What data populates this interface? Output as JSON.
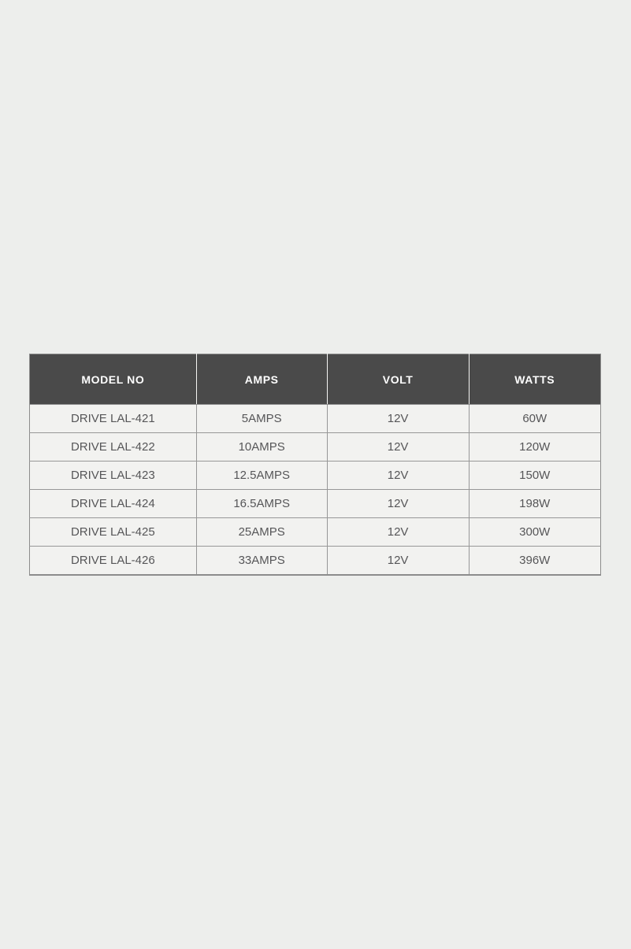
{
  "page": {
    "background": "#edeeec"
  },
  "table": {
    "columns": [
      "MODEL NO",
      "AMPS",
      "VOLT",
      "WATTS"
    ],
    "rows": [
      [
        "DRIVE LAL-421",
        "5AMPS",
        "12V",
        "60W"
      ],
      [
        "DRIVE LAL-422",
        "10AMPS",
        "12V",
        "120W"
      ],
      [
        "DRIVE LAL-423",
        "12.5AMPS",
        "12V",
        "150W"
      ],
      [
        "DRIVE LAL-424",
        "16.5AMPS",
        "12V",
        "198W"
      ],
      [
        "DRIVE LAL-425",
        "25AMPS",
        "12V",
        "300W"
      ],
      [
        "DRIVE LAL-426",
        "33AMPS",
        "12V",
        "396W"
      ]
    ],
    "colors": {
      "header_bg": "#4a4a4a",
      "header_text": "#ffffff",
      "cell_bg": "#f2f2f0",
      "cell_text": "#565658",
      "border_outer": "#8c8c8c",
      "border_inner": "#979797"
    }
  },
  "chart_data": {
    "type": "table",
    "title": "",
    "columns": [
      "MODEL NO",
      "AMPS",
      "VOLT",
      "WATTS"
    ],
    "rows": [
      {
        "model_no": "DRIVE LAL-421",
        "amps": "5AMPS",
        "volt": "12V",
        "watts": "60W"
      },
      {
        "model_no": "DRIVE LAL-422",
        "amps": "10AMPS",
        "volt": "12V",
        "watts": "120W"
      },
      {
        "model_no": "DRIVE LAL-423",
        "amps": "12.5AMPS",
        "volt": "12V",
        "watts": "150W"
      },
      {
        "model_no": "DRIVE LAL-424",
        "amps": "16.5AMPS",
        "volt": "12V",
        "watts": "198W"
      },
      {
        "model_no": "DRIVE LAL-425",
        "amps": "25AMPS",
        "volt": "12V",
        "watts": "300W"
      },
      {
        "model_no": "DRIVE LAL-426",
        "amps": "33AMPS",
        "volt": "12V",
        "watts": "396W"
      }
    ]
  }
}
